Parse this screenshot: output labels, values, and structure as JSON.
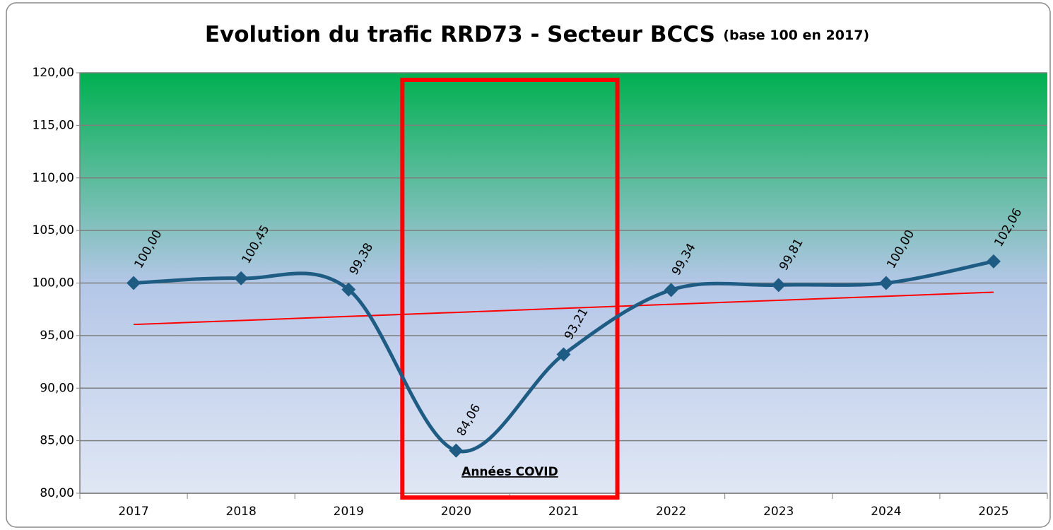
{
  "chart_data": {
    "type": "line",
    "title": "Evolution du trafic RRD73 - Secteur BCCS",
    "subtitle": "(base 100 en 2017)",
    "categories": [
      "2017",
      "2018",
      "2019",
      "2020",
      "2021",
      "2022",
      "2023",
      "2024",
      "2025"
    ],
    "values": [
      100.0,
      100.45,
      99.38,
      84.06,
      93.21,
      99.34,
      99.81,
      100.0,
      102.06
    ],
    "value_labels": [
      "100,00",
      "100,45",
      "99,38",
      "84,06",
      "93,21",
      "99,34",
      "99,81",
      "100,00",
      "102,06"
    ],
    "color": "#1f5c84",
    "ylim": [
      80,
      120
    ],
    "yticks": [
      {
        "value": 80,
        "label": "80,00"
      },
      {
        "value": 85,
        "label": "85,00"
      },
      {
        "value": 90,
        "label": "90,00"
      },
      {
        "value": 95,
        "label": "95,00"
      },
      {
        "value": 100,
        "label": "100,00"
      },
      {
        "value": 105,
        "label": "105,00"
      },
      {
        "value": 110,
        "label": "110,00"
      },
      {
        "value": 115,
        "label": "115,00"
      },
      {
        "value": 120,
        "label": "120,00"
      }
    ],
    "grid": true,
    "trendline": {
      "color": "#ff0000"
    },
    "annotation": {
      "text": "Années COVID",
      "span": [
        "2020",
        "2021"
      ],
      "color": "#ff0000"
    }
  }
}
